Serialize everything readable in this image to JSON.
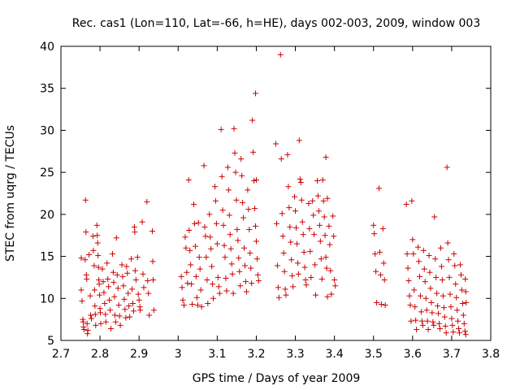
{
  "chart_data": {
    "type": "scatter",
    "title": "Rec. cas1 (Lon=110, Lat=-66, h=HE), days 002-003, 2009, window 003",
    "xlabel": "GPS time / Days of year 2009",
    "ylabel": "STEC from uqrg / TECUs",
    "xlim": [
      2.7,
      3.8
    ],
    "ylim": [
      5,
      40
    ],
    "xticks": [
      "2.7",
      "2.8",
      "2.9",
      "3",
      "3.1",
      "3.2",
      "3.3",
      "3.4",
      "3.5",
      "3.6",
      "3.7",
      "3.8"
    ],
    "yticks": [
      "5",
      "10",
      "15",
      "20",
      "25",
      "30",
      "35",
      "40"
    ],
    "grid": false,
    "legend": "none",
    "marker": "plus",
    "color": "#cc0000",
    "points": [
      [
        2.752,
        14.8
      ],
      [
        2.752,
        11.0
      ],
      [
        2.754,
        9.7
      ],
      [
        2.756,
        7.5
      ],
      [
        2.757,
        7.2
      ],
      [
        2.758,
        6.6
      ],
      [
        2.759,
        6.3
      ],
      [
        2.762,
        14.6
      ],
      [
        2.763,
        21.7
      ],
      [
        2.764,
        17.9
      ],
      [
        2.765,
        12.8
      ],
      [
        2.766,
        12.3
      ],
      [
        2.767,
        7.0
      ],
      [
        2.768,
        5.8
      ],
      [
        2.769,
        6.2
      ],
      [
        2.772,
        15.2
      ],
      [
        2.775,
        10.3
      ],
      [
        2.776,
        8.0
      ],
      [
        2.778,
        7.6
      ],
      [
        2.782,
        17.4
      ],
      [
        2.783,
        15.7
      ],
      [
        2.785,
        13.9
      ],
      [
        2.786,
        11.0
      ],
      [
        2.787,
        9.1
      ],
      [
        2.788,
        8.1
      ],
      [
        2.789,
        6.8
      ],
      [
        2.792,
        18.7
      ],
      [
        2.793,
        17.5
      ],
      [
        2.794,
        16.6
      ],
      [
        2.795,
        15.1
      ],
      [
        2.796,
        13.7
      ],
      [
        2.797,
        12.2
      ],
      [
        2.798,
        11.7
      ],
      [
        2.799,
        10.4
      ],
      [
        2.8,
        8.8
      ],
      [
        2.801,
        8.3
      ],
      [
        2.802,
        7.0
      ],
      [
        2.806,
        13.5
      ],
      [
        2.808,
        12.0
      ],
      [
        2.81,
        10.7
      ],
      [
        2.812,
        9.4
      ],
      [
        2.814,
        8.1
      ],
      [
        2.815,
        7.2
      ],
      [
        2.818,
        14.2
      ],
      [
        2.82,
        12.3
      ],
      [
        2.822,
        11.4
      ],
      [
        2.824,
        9.8
      ],
      [
        2.826,
        8.6
      ],
      [
        2.828,
        6.4
      ],
      [
        2.832,
        15.3
      ],
      [
        2.834,
        13.1
      ],
      [
        2.835,
        11.9
      ],
      [
        2.837,
        10.2
      ],
      [
        2.838,
        8.0
      ],
      [
        2.84,
        7.2
      ],
      [
        2.842,
        17.2
      ],
      [
        2.844,
        12.8
      ],
      [
        2.846,
        11.2
      ],
      [
        2.848,
        9.2
      ],
      [
        2.85,
        7.9
      ],
      [
        2.852,
        6.8
      ],
      [
        2.856,
        14.0
      ],
      [
        2.858,
        12.6
      ],
      [
        2.86,
        11.5
      ],
      [
        2.862,
        9.9
      ],
      [
        2.864,
        8.7
      ],
      [
        2.866,
        7.7
      ],
      [
        2.868,
        13.8
      ],
      [
        2.87,
        13.0
      ],
      [
        2.872,
        10.6
      ],
      [
        2.874,
        9.1
      ],
      [
        2.876,
        7.8
      ],
      [
        2.88,
        14.7
      ],
      [
        2.882,
        11.1
      ],
      [
        2.884,
        9.4
      ],
      [
        2.886,
        8.5
      ],
      [
        2.888,
        18.5
      ],
      [
        2.889,
        17.9
      ],
      [
        2.89,
        13.3
      ],
      [
        2.892,
        12.2
      ],
      [
        2.896,
        14.9
      ],
      [
        2.898,
        10.5
      ],
      [
        2.9,
        9.8
      ],
      [
        2.902,
        9.0
      ],
      [
        2.903,
        8.6
      ],
      [
        2.908,
        19.1
      ],
      [
        2.91,
        12.9
      ],
      [
        2.912,
        11.3
      ],
      [
        2.92,
        21.5
      ],
      [
        2.922,
        12.1
      ],
      [
        2.924,
        10.6
      ],
      [
        2.926,
        8.0
      ],
      [
        2.934,
        18.0
      ],
      [
        2.935,
        14.4
      ],
      [
        2.936,
        12.2
      ],
      [
        2.938,
        8.6
      ],
      [
        3.008,
        12.6
      ],
      [
        3.01,
        11.3
      ],
      [
        3.012,
        9.8
      ],
      [
        3.015,
        9.2
      ],
      [
        3.018,
        17.3
      ],
      [
        3.02,
        16.0
      ],
      [
        3.022,
        13.1
      ],
      [
        3.024,
        11.8
      ],
      [
        3.027,
        24.1
      ],
      [
        3.028,
        18.1
      ],
      [
        3.03,
        15.7
      ],
      [
        3.032,
        14.0
      ],
      [
        3.034,
        11.7
      ],
      [
        3.036,
        9.3
      ],
      [
        3.04,
        21.2
      ],
      [
        3.042,
        18.9
      ],
      [
        3.044,
        16.2
      ],
      [
        3.046,
        12.6
      ],
      [
        3.048,
        10.1
      ],
      [
        3.05,
        9.2
      ],
      [
        3.052,
        19.0
      ],
      [
        3.054,
        14.9
      ],
      [
        3.056,
        13.5
      ],
      [
        3.058,
        11.0
      ],
      [
        3.06,
        9.0
      ],
      [
        3.066,
        25.8
      ],
      [
        3.068,
        18.5
      ],
      [
        3.07,
        17.4
      ],
      [
        3.072,
        14.9
      ],
      [
        3.074,
        12.2
      ],
      [
        3.076,
        9.4
      ],
      [
        3.08,
        20.0
      ],
      [
        3.082,
        17.3
      ],
      [
        3.084,
        15.9
      ],
      [
        3.086,
        13.8
      ],
      [
        3.088,
        11.7
      ],
      [
        3.09,
        10.0
      ],
      [
        3.094,
        23.3
      ],
      [
        3.096,
        21.6
      ],
      [
        3.098,
        18.9
      ],
      [
        3.1,
        16.5
      ],
      [
        3.102,
        12.5
      ],
      [
        3.104,
        11.4
      ],
      [
        3.106,
        10.6
      ],
      [
        3.11,
        30.1
      ],
      [
        3.112,
        24.5
      ],
      [
        3.114,
        20.5
      ],
      [
        3.116,
        18.7
      ],
      [
        3.118,
        16.3
      ],
      [
        3.12,
        14.9
      ],
      [
        3.122,
        12.4
      ],
      [
        3.124,
        10.9
      ],
      [
        3.127,
        25.6
      ],
      [
        3.129,
        22.9
      ],
      [
        3.131,
        19.9
      ],
      [
        3.133,
        17.6
      ],
      [
        3.135,
        15.9
      ],
      [
        3.137,
        14.1
      ],
      [
        3.139,
        12.9
      ],
      [
        3.141,
        10.6
      ],
      [
        3.143,
        30.2
      ],
      [
        3.145,
        27.3
      ],
      [
        3.147,
        25.0
      ],
      [
        3.149,
        21.7
      ],
      [
        3.151,
        18.2
      ],
      [
        3.153,
        16.9
      ],
      [
        3.155,
        14.8
      ],
      [
        3.157,
        13.2
      ],
      [
        3.159,
        11.5
      ],
      [
        3.161,
        26.6
      ],
      [
        3.163,
        24.6
      ],
      [
        3.165,
        21.4
      ],
      [
        3.167,
        19.6
      ],
      [
        3.169,
        16.0
      ],
      [
        3.171,
        13.9
      ],
      [
        3.173,
        12.0
      ],
      [
        3.175,
        10.8
      ],
      [
        3.178,
        22.9
      ],
      [
        3.18,
        20.6
      ],
      [
        3.182,
        18.2
      ],
      [
        3.184,
        15.4
      ],
      [
        3.186,
        13.6
      ],
      [
        3.188,
        11.8
      ],
      [
        3.19,
        31.2
      ],
      [
        3.192,
        27.4
      ],
      [
        3.194,
        24.0
      ],
      [
        3.196,
        20.7
      ],
      [
        3.198,
        18.6
      ],
      [
        3.2,
        16.8
      ],
      [
        3.202,
        14.7
      ],
      [
        3.204,
        12.8
      ],
      [
        3.206,
        12.1
      ],
      [
        3.198,
        34.4
      ],
      [
        3.2,
        24.1
      ],
      [
        3.25,
        28.4
      ],
      [
        3.252,
        18.9
      ],
      [
        3.254,
        13.9
      ],
      [
        3.256,
        11.3
      ],
      [
        3.258,
        10.1
      ],
      [
        3.262,
        39.0
      ],
      [
        3.264,
        26.6
      ],
      [
        3.266,
        20.1
      ],
      [
        3.268,
        17.4
      ],
      [
        3.27,
        15.4
      ],
      [
        3.272,
        13.2
      ],
      [
        3.274,
        11.1
      ],
      [
        3.276,
        10.4
      ],
      [
        3.28,
        27.1
      ],
      [
        3.282,
        23.3
      ],
      [
        3.284,
        20.8
      ],
      [
        3.286,
        18.5
      ],
      [
        3.288,
        16.7
      ],
      [
        3.29,
        14.6
      ],
      [
        3.292,
        12.7
      ],
      [
        3.294,
        11.4
      ],
      [
        3.298,
        22.1
      ],
      [
        3.3,
        20.4
      ],
      [
        3.302,
        18.4
      ],
      [
        3.304,
        16.5
      ],
      [
        3.306,
        14.2
      ],
      [
        3.308,
        12.9
      ],
      [
        3.31,
        28.8
      ],
      [
        3.312,
        24.2
      ],
      [
        3.314,
        23.8
      ],
      [
        3.316,
        21.7
      ],
      [
        3.318,
        19.1
      ],
      [
        3.32,
        17.6
      ],
      [
        3.322,
        15.5
      ],
      [
        3.324,
        13.7
      ],
      [
        3.326,
        12.2
      ],
      [
        3.328,
        11.6
      ],
      [
        3.334,
        21.3
      ],
      [
        3.336,
        18.3
      ],
      [
        3.338,
        15.6
      ],
      [
        3.34,
        12.5
      ],
      [
        3.344,
        21.6
      ],
      [
        3.346,
        19.9
      ],
      [
        3.348,
        17.6
      ],
      [
        3.35,
        14.0
      ],
      [
        3.352,
        10.4
      ],
      [
        3.356,
        24.0
      ],
      [
        3.358,
        22.2
      ],
      [
        3.36,
        20.4
      ],
      [
        3.362,
        18.7
      ],
      [
        3.364,
        16.8
      ],
      [
        3.366,
        14.7
      ],
      [
        3.368,
        12.3
      ],
      [
        3.37,
        24.1
      ],
      [
        3.372,
        21.6
      ],
      [
        3.374,
        19.7
      ],
      [
        3.376,
        17.5
      ],
      [
        3.378,
        14.9
      ],
      [
        3.38,
        13.6
      ],
      [
        3.382,
        10.2
      ],
      [
        3.378,
        26.8
      ],
      [
        3.382,
        21.9
      ],
      [
        3.386,
        18.6
      ],
      [
        3.388,
        16.4
      ],
      [
        3.39,
        13.3
      ],
      [
        3.392,
        10.5
      ],
      [
        3.396,
        19.8
      ],
      [
        3.398,
        17.4
      ],
      [
        3.4,
        12.2
      ],
      [
        3.402,
        11.5
      ],
      [
        3.5,
        18.7
      ],
      [
        3.502,
        17.7
      ],
      [
        3.504,
        15.3
      ],
      [
        3.506,
        13.2
      ],
      [
        3.508,
        9.5
      ],
      [
        3.514,
        23.1
      ],
      [
        3.516,
        15.5
      ],
      [
        3.518,
        12.8
      ],
      [
        3.52,
        9.3
      ],
      [
        3.524,
        18.3
      ],
      [
        3.526,
        14.2
      ],
      [
        3.528,
        12.2
      ],
      [
        3.53,
        9.2
      ],
      [
        3.584,
        21.2
      ],
      [
        3.586,
        15.3
      ],
      [
        3.588,
        13.6
      ],
      [
        3.59,
        12.1
      ],
      [
        3.592,
        10.3
      ],
      [
        3.594,
        9.2
      ],
      [
        3.596,
        7.3
      ],
      [
        3.598,
        21.6
      ],
      [
        3.6,
        17.0
      ],
      [
        3.602,
        15.3
      ],
      [
        3.604,
        11.0
      ],
      [
        3.606,
        9.0
      ],
      [
        3.608,
        7.4
      ],
      [
        3.61,
        6.3
      ],
      [
        3.614,
        16.1
      ],
      [
        3.616,
        14.4
      ],
      [
        3.618,
        12.6
      ],
      [
        3.62,
        10.3
      ],
      [
        3.622,
        8.4
      ],
      [
        3.624,
        7.3
      ],
      [
        3.626,
        6.8
      ],
      [
        3.628,
        15.7
      ],
      [
        3.63,
        13.5
      ],
      [
        3.632,
        12.0
      ],
      [
        3.634,
        10.0
      ],
      [
        3.636,
        8.6
      ],
      [
        3.638,
        7.3
      ],
      [
        3.64,
        6.3
      ],
      [
        3.642,
        15.1
      ],
      [
        3.644,
        13.1
      ],
      [
        3.646,
        11.2
      ],
      [
        3.648,
        9.5
      ],
      [
        3.65,
        8.3
      ],
      [
        3.652,
        7.2
      ],
      [
        3.654,
        6.8
      ],
      [
        3.656,
        19.7
      ],
      [
        3.658,
        14.7
      ],
      [
        3.66,
        12.5
      ],
      [
        3.662,
        10.6
      ],
      [
        3.664,
        9.1
      ],
      [
        3.666,
        8.2
      ],
      [
        3.668,
        7.0
      ],
      [
        3.67,
        6.4
      ],
      [
        3.672,
        16.0
      ],
      [
        3.674,
        13.8
      ],
      [
        3.676,
        12.2
      ],
      [
        3.678,
        10.3
      ],
      [
        3.68,
        8.9
      ],
      [
        3.682,
        7.8
      ],
      [
        3.684,
        6.7
      ],
      [
        3.686,
        5.9
      ],
      [
        3.688,
        25.6
      ],
      [
        3.69,
        16.6
      ],
      [
        3.692,
        14.6
      ],
      [
        3.694,
        12.5
      ],
      [
        3.696,
        10.5
      ],
      [
        3.698,
        9.0
      ],
      [
        3.7,
        7.6
      ],
      [
        3.702,
        6.8
      ],
      [
        3.704,
        6.0
      ],
      [
        3.706,
        15.3
      ],
      [
        3.708,
        13.9
      ],
      [
        3.71,
        11.7
      ],
      [
        3.712,
        10.1
      ],
      [
        3.714,
        8.6
      ],
      [
        3.716,
        7.3
      ],
      [
        3.718,
        6.4
      ],
      [
        3.72,
        5.9
      ],
      [
        3.722,
        14.0
      ],
      [
        3.724,
        12.8
      ],
      [
        3.726,
        11.0
      ],
      [
        3.728,
        9.4
      ],
      [
        3.73,
        8.0
      ],
      [
        3.732,
        7.0
      ],
      [
        3.734,
        6.1
      ],
      [
        3.736,
        5.7
      ],
      [
        3.735,
        12.3
      ],
      [
        3.736,
        10.8
      ],
      [
        3.737,
        9.5
      ]
    ]
  }
}
